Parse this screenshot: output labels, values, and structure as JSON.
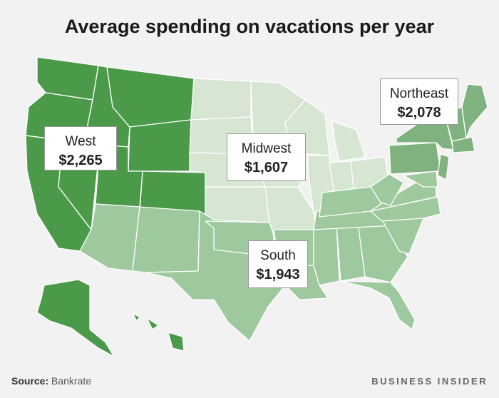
{
  "title": "Average spending on vacations per year",
  "colors": {
    "west": "#4a9a4a",
    "northeast": "#7fb27f",
    "south": "#9ec89e",
    "midwest": "#d6e6d3",
    "border": "#ffffff",
    "background": "#f2f2f2"
  },
  "regions": [
    {
      "name": "West",
      "value": "$2,265"
    },
    {
      "name": "Midwest",
      "value": "$1,607"
    },
    {
      "name": "Northeast",
      "value": "$2,078"
    },
    {
      "name": "South",
      "value": "$1,943"
    }
  ],
  "source": {
    "label": "Source:",
    "value": "Bankrate"
  },
  "brand": "BUSINESS INSIDER"
}
